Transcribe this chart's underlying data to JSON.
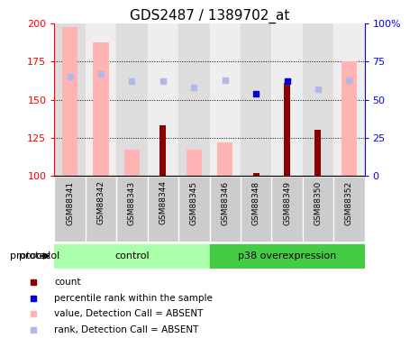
{
  "title": "GDS2487 / 1389702_at",
  "samples": [
    "GSM88341",
    "GSM88342",
    "GSM88343",
    "GSM88344",
    "GSM88345",
    "GSM88346",
    "GSM88348",
    "GSM88349",
    "GSM88350",
    "GSM88352"
  ],
  "value_bars": [
    198,
    188,
    117,
    null,
    117,
    122,
    null,
    null,
    null,
    175
  ],
  "count_bars": [
    null,
    null,
    null,
    133,
    null,
    null,
    102,
    161,
    130,
    null
  ],
  "rank_dots_absent": [
    165,
    167,
    162,
    162,
    158,
    163,
    null,
    162,
    157,
    163
  ],
  "rank_dots_present": [
    null,
    null,
    null,
    null,
    null,
    null,
    154,
    162,
    null,
    null
  ],
  "ylim_left": [
    100,
    200
  ],
  "ylim_right": [
    0,
    100
  ],
  "yticks_left": [
    100,
    125,
    150,
    175,
    200
  ],
  "yticks_right": [
    0,
    25,
    50,
    75,
    100
  ],
  "color_value_absent": "#ffb3b3",
  "color_count": "#8b0000",
  "color_rank_absent": "#b0b8e8",
  "color_rank_present": "#0000cc",
  "bg_color_control": "#aaffaa",
  "bg_color_p38": "#44cc44",
  "sample_label_bg": "#cccccc",
  "grid_color": "black",
  "title_fontsize": 11,
  "n_control": 5,
  "n_p38": 5
}
